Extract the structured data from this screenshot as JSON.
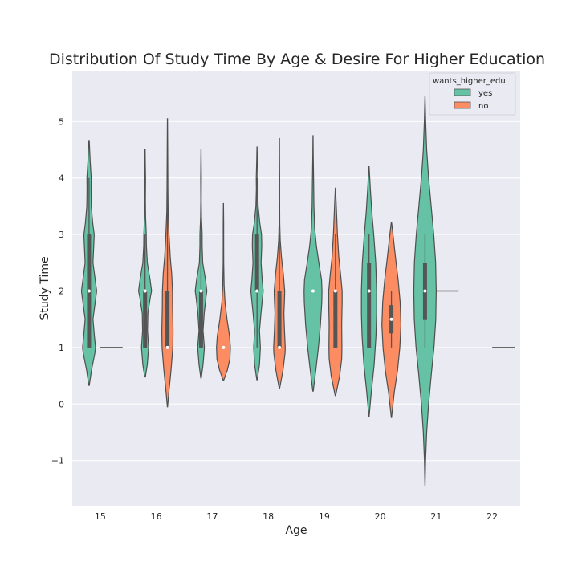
{
  "chart_data": {
    "type": "violin",
    "title": "Distribution Of Study Time By Age & Desire For Higher Education",
    "xlabel": "Age",
    "ylabel": "Study Time",
    "categories": [
      "15",
      "16",
      "17",
      "18",
      "19",
      "20",
      "21",
      "22"
    ],
    "ylim": [
      -1.8,
      5.9
    ],
    "yticks": [
      -1,
      0,
      1,
      2,
      3,
      4,
      5
    ],
    "ytick_labels": [
      "−1",
      "0",
      "1",
      "2",
      "3",
      "4",
      "5"
    ],
    "grid": true,
    "legend": {
      "title": "wants_higher_edu",
      "placement": "top-right"
    },
    "series": [
      {
        "name": "yes",
        "color": "#66c2a5"
      },
      {
        "name": "no",
        "color": "#fc8d62"
      }
    ],
    "violins": [
      {
        "category": "15",
        "series": "yes",
        "kind": "violin",
        "range": [
          0.33,
          4.65
        ],
        "median": 2,
        "q1": 1,
        "q3": 3,
        "whisker": [
          1,
          4
        ],
        "profile": [
          [
            0.33,
            0.02
          ],
          [
            0.6,
            0.22
          ],
          [
            0.9,
            0.52
          ],
          [
            1.0,
            0.58
          ],
          [
            1.2,
            0.48
          ],
          [
            1.5,
            0.35
          ],
          [
            1.8,
            0.55
          ],
          [
            2.0,
            0.68
          ],
          [
            2.2,
            0.55
          ],
          [
            2.5,
            0.35
          ],
          [
            2.8,
            0.42
          ],
          [
            3.0,
            0.46
          ],
          [
            3.2,
            0.33
          ],
          [
            3.5,
            0.2
          ],
          [
            3.8,
            0.18
          ],
          [
            4.0,
            0.19
          ],
          [
            4.3,
            0.1
          ],
          [
            4.65,
            0.02
          ]
        ]
      },
      {
        "category": "15",
        "series": "no",
        "kind": "line",
        "value": 1
      },
      {
        "category": "16",
        "series": "yes",
        "kind": "violin",
        "range": [
          0.48,
          4.5
        ],
        "median": 2,
        "q1": 1,
        "q3": 2,
        "whisker": [
          1,
          3
        ],
        "profile": [
          [
            0.48,
            0.03
          ],
          [
            0.7,
            0.2
          ],
          [
            1.0,
            0.32
          ],
          [
            1.3,
            0.22
          ],
          [
            1.6,
            0.25
          ],
          [
            1.9,
            0.48
          ],
          [
            2.0,
            0.58
          ],
          [
            2.2,
            0.45
          ],
          [
            2.5,
            0.2
          ],
          [
            2.8,
            0.12
          ],
          [
            3.0,
            0.11
          ],
          [
            3.3,
            0.05
          ],
          [
            3.6,
            0.03
          ],
          [
            4.0,
            0.045
          ],
          [
            4.3,
            0.02
          ],
          [
            4.5,
            0.01
          ]
        ]
      },
      {
        "category": "16",
        "series": "no",
        "kind": "violin",
        "range": [
          -0.05,
          5.05
        ],
        "median": 1,
        "q1": 1,
        "q3": 2,
        "whisker": [
          1,
          4
        ],
        "profile": [
          [
            -0.05,
            0.01
          ],
          [
            0.2,
            0.12
          ],
          [
            0.6,
            0.32
          ],
          [
            1.0,
            0.48
          ],
          [
            1.3,
            0.5
          ],
          [
            1.7,
            0.46
          ],
          [
            2.0,
            0.45
          ],
          [
            2.3,
            0.38
          ],
          [
            2.6,
            0.25
          ],
          [
            3.0,
            0.14
          ],
          [
            3.4,
            0.06
          ],
          [
            3.8,
            0.04
          ],
          [
            4.2,
            0.03
          ],
          [
            4.6,
            0.02
          ],
          [
            5.05,
            0.005
          ]
        ]
      },
      {
        "category": "17",
        "series": "yes",
        "kind": "violin",
        "range": [
          0.46,
          4.5
        ],
        "median": 2,
        "q1": 1,
        "q3": 2,
        "whisker": [
          1,
          3
        ],
        "profile": [
          [
            0.46,
            0.02
          ],
          [
            0.7,
            0.18
          ],
          [
            1.0,
            0.3
          ],
          [
            1.3,
            0.18
          ],
          [
            1.6,
            0.28
          ],
          [
            1.9,
            0.45
          ],
          [
            2.0,
            0.52
          ],
          [
            2.2,
            0.4
          ],
          [
            2.5,
            0.15
          ],
          [
            2.8,
            0.1
          ],
          [
            3.0,
            0.1
          ],
          [
            3.3,
            0.04
          ],
          [
            3.6,
            0.02
          ],
          [
            4.0,
            0.03
          ],
          [
            4.5,
            0.005
          ]
        ]
      },
      {
        "category": "17",
        "series": "no",
        "kind": "violin",
        "range": [
          0.42,
          3.55
        ],
        "median": 1,
        "q1": 1,
        "q3": 1,
        "whisker": [
          1,
          1
        ],
        "profile": [
          [
            0.42,
            0.02
          ],
          [
            0.6,
            0.35
          ],
          [
            0.8,
            0.58
          ],
          [
            1.0,
            0.62
          ],
          [
            1.2,
            0.55
          ],
          [
            1.5,
            0.32
          ],
          [
            1.8,
            0.14
          ],
          [
            2.1,
            0.06
          ],
          [
            2.5,
            0.025
          ],
          [
            2.9,
            0.02
          ],
          [
            3.2,
            0.02
          ],
          [
            3.55,
            0.005
          ]
        ]
      },
      {
        "category": "18",
        "series": "yes",
        "kind": "violin",
        "range": [
          0.43,
          4.55
        ],
        "median": 2,
        "q1": 2,
        "q3": 3,
        "whisker": [
          1,
          4
        ],
        "profile": [
          [
            0.43,
            0.02
          ],
          [
            0.7,
            0.22
          ],
          [
            1.0,
            0.3
          ],
          [
            1.3,
            0.22
          ],
          [
            1.6,
            0.35
          ],
          [
            1.9,
            0.5
          ],
          [
            2.0,
            0.55
          ],
          [
            2.2,
            0.46
          ],
          [
            2.5,
            0.36
          ],
          [
            2.8,
            0.42
          ],
          [
            3.0,
            0.4
          ],
          [
            3.2,
            0.25
          ],
          [
            3.5,
            0.1
          ],
          [
            3.8,
            0.06
          ],
          [
            4.0,
            0.07
          ],
          [
            4.3,
            0.03
          ],
          [
            4.55,
            0.005
          ]
        ]
      },
      {
        "category": "18",
        "series": "no",
        "kind": "violin",
        "range": [
          0.28,
          4.7
        ],
        "median": 1,
        "q1": 1,
        "q3": 2,
        "whisker": [
          1,
          3
        ],
        "profile": [
          [
            0.28,
            0.02
          ],
          [
            0.6,
            0.32
          ],
          [
            0.9,
            0.5
          ],
          [
            1.0,
            0.52
          ],
          [
            1.3,
            0.45
          ],
          [
            1.6,
            0.4
          ],
          [
            1.9,
            0.46
          ],
          [
            2.0,
            0.47
          ],
          [
            2.3,
            0.35
          ],
          [
            2.6,
            0.18
          ],
          [
            2.9,
            0.07
          ],
          [
            3.2,
            0.03
          ],
          [
            3.6,
            0.02
          ],
          [
            4.0,
            0.02
          ],
          [
            4.4,
            0.01
          ],
          [
            4.7,
            0.005
          ]
        ]
      },
      {
        "category": "19",
        "series": "yes",
        "kind": "violin",
        "range": [
          0.23,
          4.75
        ],
        "median": 2,
        "q1": 2,
        "q3": 2,
        "whisker": [
          2,
          2
        ],
        "profile": [
          [
            0.23,
            0.02
          ],
          [
            0.6,
            0.25
          ],
          [
            1.0,
            0.48
          ],
          [
            1.4,
            0.66
          ],
          [
            1.8,
            0.78
          ],
          [
            2.0,
            0.8
          ],
          [
            2.2,
            0.76
          ],
          [
            2.5,
            0.52
          ],
          [
            2.8,
            0.3
          ],
          [
            3.1,
            0.15
          ],
          [
            3.5,
            0.08
          ],
          [
            4.0,
            0.05
          ],
          [
            4.4,
            0.02
          ],
          [
            4.75,
            0.005
          ]
        ]
      },
      {
        "category": "19",
        "series": "no",
        "kind": "violin",
        "range": [
          0.15,
          3.82
        ],
        "median": 2,
        "q1": 1,
        "q3": 2,
        "whisker": [
          1,
          3
        ],
        "profile": [
          [
            0.15,
            0.02
          ],
          [
            0.5,
            0.38
          ],
          [
            0.8,
            0.56
          ],
          [
            1.0,
            0.58
          ],
          [
            1.4,
            0.56
          ],
          [
            1.8,
            0.6
          ],
          [
            2.0,
            0.6
          ],
          [
            2.3,
            0.46
          ],
          [
            2.6,
            0.3
          ],
          [
            3.0,
            0.18
          ],
          [
            3.4,
            0.1
          ],
          [
            3.82,
            0.01
          ]
        ]
      },
      {
        "category": "20",
        "series": "yes",
        "kind": "violin",
        "range": [
          -0.22,
          4.2
        ],
        "median": 2,
        "q1": 1,
        "q3": 2.5,
        "whisker": [
          1,
          3
        ],
        "profile": [
          [
            -0.22,
            0.01
          ],
          [
            0.2,
            0.2
          ],
          [
            0.7,
            0.46
          ],
          [
            1.2,
            0.62
          ],
          [
            1.6,
            0.68
          ],
          [
            2.0,
            0.68
          ],
          [
            2.5,
            0.6
          ],
          [
            3.0,
            0.42
          ],
          [
            3.4,
            0.25
          ],
          [
            3.8,
            0.12
          ],
          [
            4.2,
            0.01
          ]
        ]
      },
      {
        "category": "20",
        "series": "no",
        "kind": "violin",
        "range": [
          -0.24,
          3.22
        ],
        "median": 1.5,
        "q1": 1.25,
        "q3": 1.75,
        "whisker": [
          1,
          2
        ],
        "profile": [
          [
            -0.24,
            0.01
          ],
          [
            0.2,
            0.25
          ],
          [
            0.6,
            0.55
          ],
          [
            1.0,
            0.75
          ],
          [
            1.4,
            0.85
          ],
          [
            1.8,
            0.78
          ],
          [
            2.2,
            0.6
          ],
          [
            2.6,
            0.36
          ],
          [
            3.0,
            0.14
          ],
          [
            3.22,
            0.01
          ]
        ]
      },
      {
        "category": "21",
        "series": "yes",
        "kind": "violin",
        "range": [
          -1.45,
          5.45
        ],
        "median": 2,
        "q1": 1.5,
        "q3": 2.5,
        "whisker": [
          1,
          3
        ],
        "profile": [
          [
            -1.45,
            0.005
          ],
          [
            -1.0,
            0.05
          ],
          [
            -0.5,
            0.15
          ],
          [
            0.0,
            0.32
          ],
          [
            0.5,
            0.55
          ],
          [
            1.0,
            0.8
          ],
          [
            1.5,
            0.96
          ],
          [
            2.0,
            1.0
          ],
          [
            2.5,
            0.95
          ],
          [
            3.0,
            0.78
          ],
          [
            3.5,
            0.55
          ],
          [
            4.0,
            0.32
          ],
          [
            4.5,
            0.15
          ],
          [
            5.0,
            0.06
          ],
          [
            5.45,
            0.005
          ]
        ]
      },
      {
        "category": "21",
        "series": "no",
        "kind": "line",
        "value": 2
      },
      {
        "category": "22",
        "series": "no",
        "kind": "line",
        "value": 1
      }
    ]
  }
}
